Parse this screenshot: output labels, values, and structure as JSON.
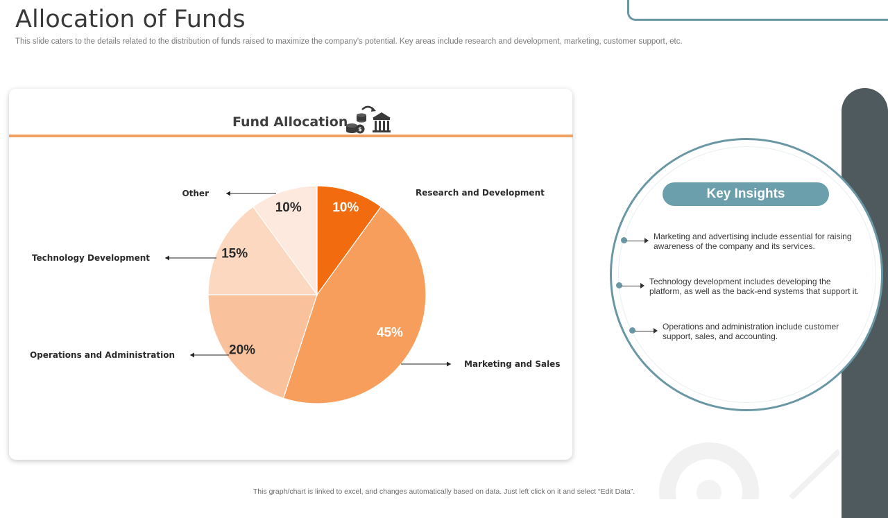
{
  "page": {
    "title": "Allocation of Funds",
    "subtitle": "This slide caters to the details related to the distribution of funds raised to maximize the company's potential. Key areas include research and development, marketing, customer support, etc.",
    "footer": "This graph/chart is linked to excel, and changes automatically based on data. Just left click on it and select “Edit Data”."
  },
  "card": {
    "title": "Fund Allocation",
    "icon": "money-transfer-bank-icon"
  },
  "chart_data": {
    "type": "pie",
    "title": "Fund Allocation",
    "categories": [
      "Research and Development",
      "Marketing and Sales",
      "Operations and Administration",
      "Technology  Development",
      "Other"
    ],
    "values": [
      10,
      45,
      20,
      15,
      10
    ],
    "value_labels": [
      "10%",
      "45%",
      "20%",
      "15%",
      "10%"
    ],
    "colors": [
      "#f26b0f",
      "#f79e5c",
      "#fac29c",
      "#fcd8c1",
      "#fde9dd"
    ],
    "label_colors": [
      "#ffffff",
      "#ffffff",
      "#2a2a2a",
      "#2a2a2a",
      "#2a2a2a"
    ],
    "start_angle_deg": 0,
    "direction": "clockwise"
  },
  "insights": {
    "heading": "Key Insights",
    "items": [
      "Marketing and advertising include essential for raising awareness of the company and its services.",
      "Technology development includes developing the platform, as well as the back-end systems that support it.",
      "Operations and administration include customer support, sales, and accounting."
    ],
    "accent_color": "#6a97a4"
  }
}
